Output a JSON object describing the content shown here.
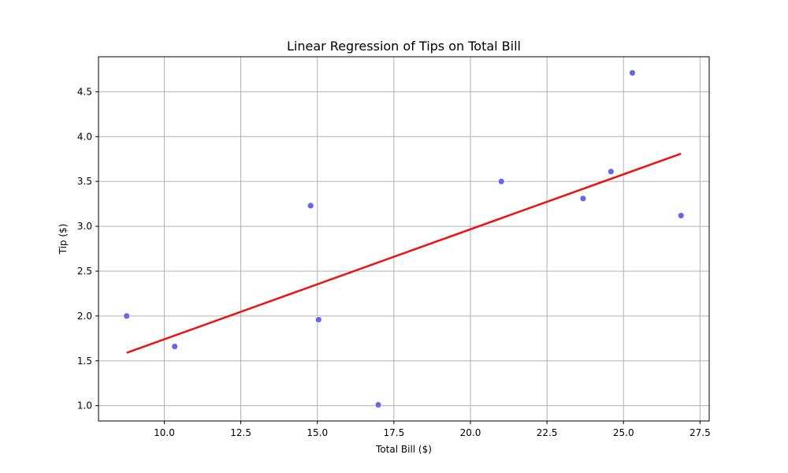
{
  "chart_data": {
    "type": "scatter",
    "title": "Linear Regression of Tips on Total Bill",
    "xlabel": "Total Bill ($)",
    "ylabel": "Tip ($)",
    "xlim": [
      7.85,
      27.8
    ],
    "ylim": [
      0.83,
      4.89
    ],
    "xticks": [
      10.0,
      12.5,
      15.0,
      17.5,
      20.0,
      22.5,
      25.0,
      27.5
    ],
    "xtick_labels": [
      "10.0",
      "12.5",
      "15.0",
      "17.5",
      "20.0",
      "22.5",
      "25.0",
      "27.5"
    ],
    "yticks": [
      1.0,
      1.5,
      2.0,
      2.5,
      3.0,
      3.5,
      4.0,
      4.5
    ],
    "ytick_labels": [
      "1.0",
      "1.5",
      "2.0",
      "2.5",
      "3.0",
      "3.5",
      "4.0",
      "4.5"
    ],
    "grid": true,
    "series": [
      {
        "type": "scatter",
        "color": "#6666ee",
        "x": [
          8.77,
          10.34,
          14.78,
          15.04,
          16.99,
          21.01,
          23.68,
          24.59,
          25.29,
          26.88
        ],
        "y": [
          2.0,
          1.66,
          3.23,
          1.96,
          1.01,
          3.5,
          3.31,
          3.61,
          4.71,
          3.12
        ]
      },
      {
        "type": "line",
        "color": "#ee1111",
        "x": [
          8.77,
          26.88
        ],
        "y": [
          1.59,
          3.81
        ]
      }
    ]
  }
}
